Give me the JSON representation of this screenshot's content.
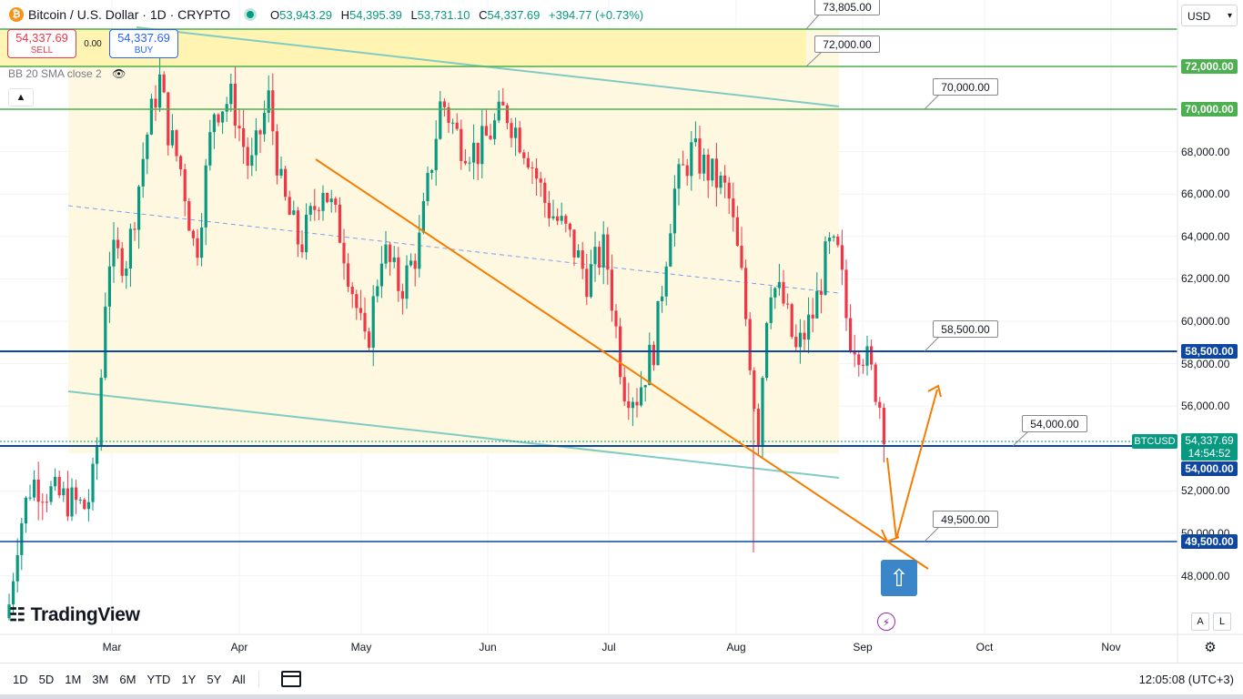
{
  "header": {
    "symbol_title": "Bitcoin / U.S. Dollar · 1D · CRYPTO",
    "btc_logo": "₿",
    "open_key": "O",
    "open": "53,943.29",
    "high_key": "H",
    "high": "54,395.39",
    "low_key": "L",
    "low": "53,731.10",
    "close_key": "C",
    "close": "54,337.69",
    "change": "+394.77 (+0.73%)"
  },
  "trade": {
    "sell_price": "54,337.69",
    "sell_label": "SELL",
    "spread": "0.00",
    "buy_price": "54,337.69",
    "buy_label": "BUY"
  },
  "indicator": {
    "label": "BB 20 SMA close 2",
    "eye_icon": "eye-off-icon"
  },
  "currency": {
    "label": "USD"
  },
  "watermark": {
    "text": "TradingView"
  },
  "price_axis": {
    "ticks": [
      "72,000.00",
      "70,000.00",
      "68,000.00",
      "66,000.00",
      "64,000.00",
      "62,000.00",
      "60,000.00",
      "58,000.00",
      "56,000.00",
      "54,000.00",
      "52,000.00",
      "50,000.00",
      "48,000.00"
    ],
    "partial_top": "73,805.00",
    "scale_a": "A",
    "scale_l": "L"
  },
  "level_tags": [
    {
      "value": "73,805.00"
    },
    {
      "value": "72,000.00"
    },
    {
      "value": "70,000.00"
    },
    {
      "value": "58,500.00"
    },
    {
      "value": "54,000.00"
    },
    {
      "value": "49,500.00"
    }
  ],
  "axis_tags": {
    "l72000": "72,000.00",
    "l70000": "70,000.00",
    "l58500": "58,500.00",
    "l54000": "54,000.00",
    "l49500": "49,500.00"
  },
  "last_price": {
    "symbol": "BTCUSD",
    "price": "54,337.69",
    "countdown": "14:54:52"
  },
  "time_axis": [
    "Mar",
    "Apr",
    "May",
    "Jun",
    "Jul",
    "Aug",
    "Sep",
    "Oct",
    "Nov"
  ],
  "bottom_bar": {
    "timeframes": [
      "1D",
      "5D",
      "1M",
      "3M",
      "6M",
      "YTD",
      "1Y",
      "5Y",
      "All"
    ],
    "clock": "12:05:08 (UTC+3)"
  },
  "colors": {
    "up": "#089981",
    "down": "#f23645",
    "level_blue": "#0d47a1",
    "level_green": "#4caf50",
    "channel": "#80cbc4",
    "trend": "#f57c00",
    "band_fill": "#fff8e1"
  },
  "chart_data": {
    "type": "candlestick",
    "symbol": "BTCUSD",
    "timeframe": "1D",
    "ylim": [
      46500,
      74500
    ],
    "date_range": [
      "2024-02-09",
      "2024-09-08"
    ],
    "horizontal_levels": [
      73805,
      72000,
      70000,
      58500,
      54000,
      49500
    ],
    "projected_path": [
      [
        "2024-09-08",
        54000
      ],
      [
        "2024-09-12",
        49500
      ],
      [
        "2024-09-20",
        56800
      ]
    ],
    "ohlc_last": {
      "open": 53943.29,
      "high": 54395.39,
      "low": 53731.1,
      "close": 54337.69
    }
  }
}
